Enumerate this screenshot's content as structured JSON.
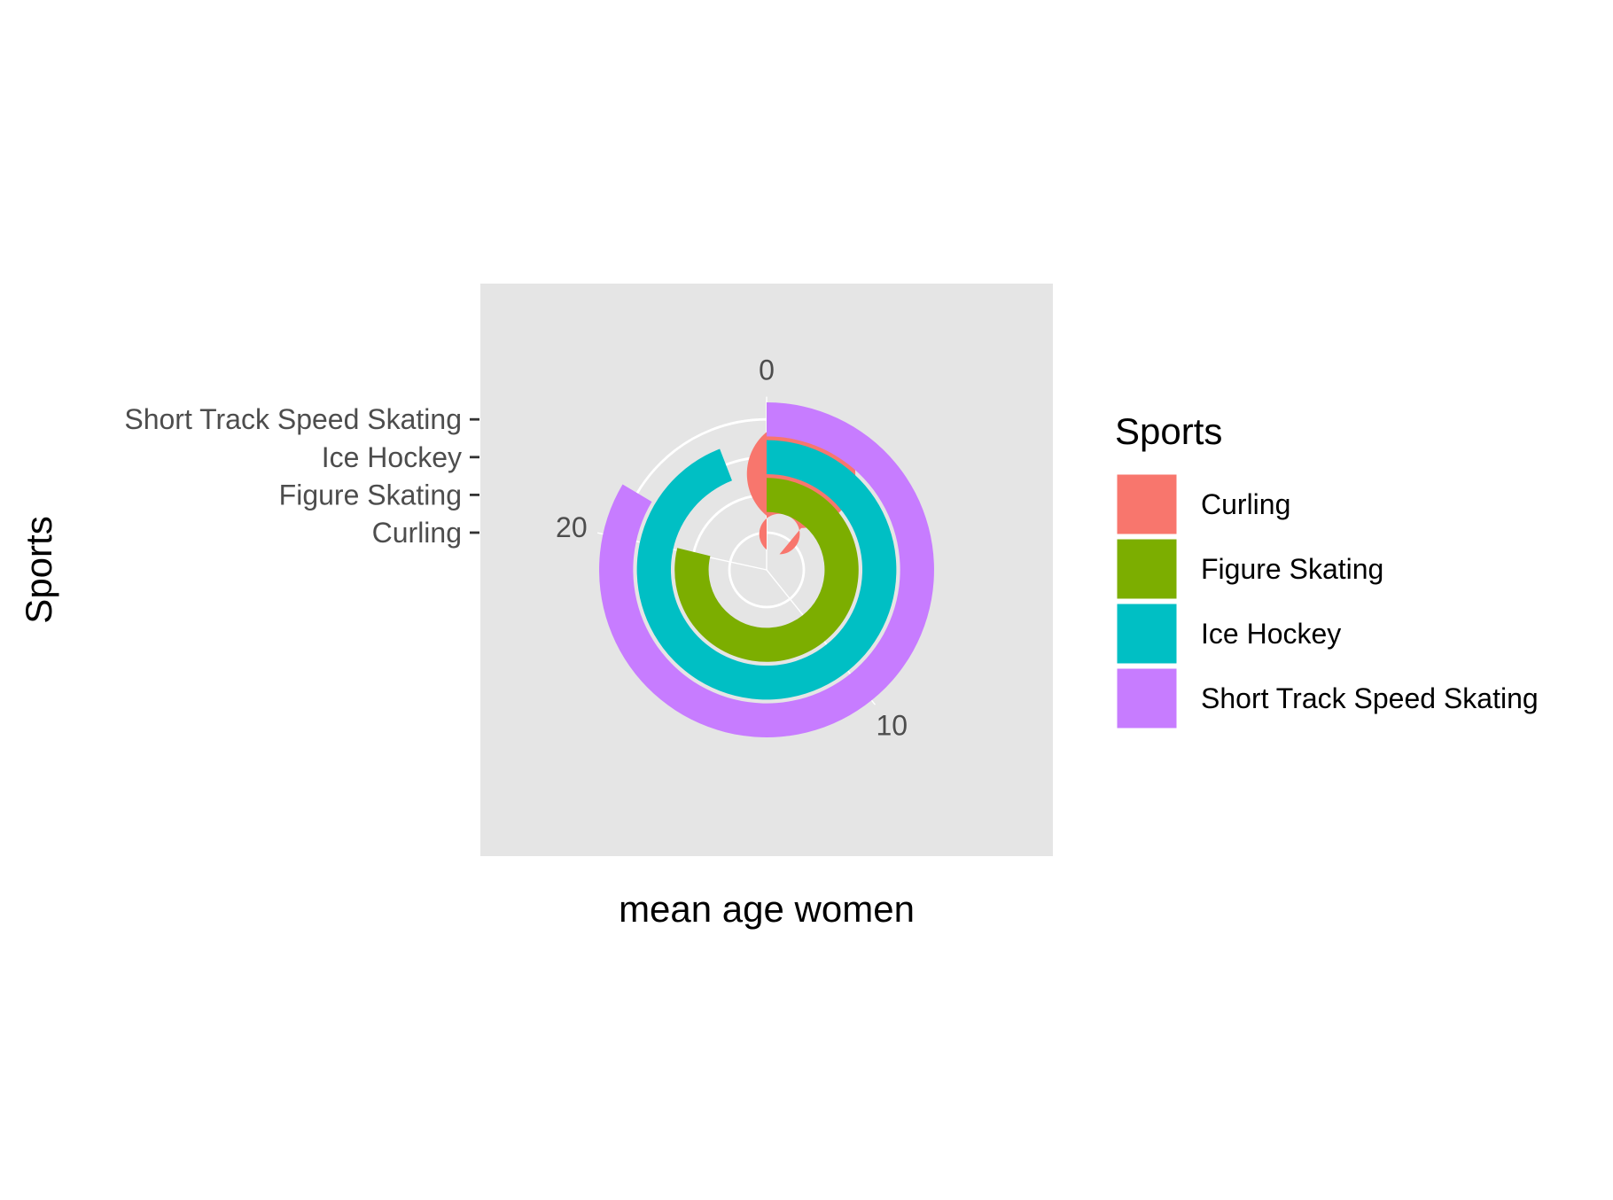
{
  "chart_data": {
    "type": "bar",
    "coord": "polar",
    "theta_variable": "mean age women",
    "radius_variable": "Sports",
    "xlabel": "mean age women",
    "ylabel": "Sports",
    "theta_range": [
      0,
      25.5
    ],
    "theta_ticks": [
      0,
      10,
      20
    ],
    "categories": [
      "Curling",
      "Figure Skating",
      "Ice Hockey",
      "Short Track Speed Skating"
    ],
    "values": [
      28.3,
      20.1,
      24.0,
      21.3
    ],
    "colors": {
      "Curling": "#F8766D",
      "Figure Skating": "#7CAE00",
      "Ice Hockey": "#00BFC4",
      "Short Track Speed Skating": "#C77CFF"
    },
    "panel_background": "#E5E5E5",
    "grid": true,
    "legend": {
      "title": "Sports",
      "position": "right",
      "items": [
        "Curling",
        "Figure Skating",
        "Ice Hockey",
        "Short Track Speed Skating"
      ]
    }
  }
}
